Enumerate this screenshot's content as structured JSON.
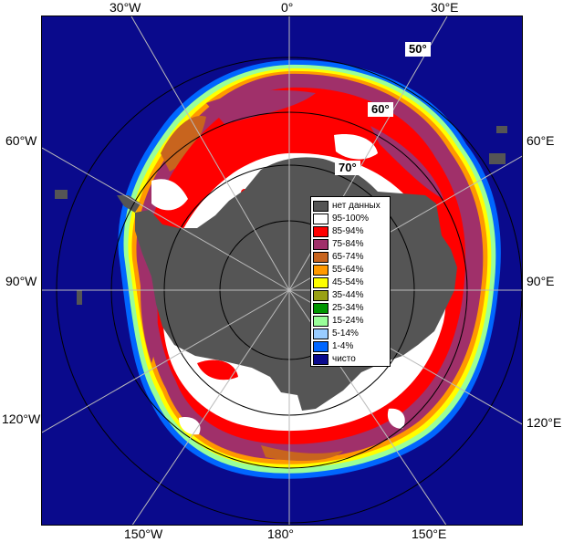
{
  "lon_labels": {
    "top": [
      "30°W",
      "0°",
      "30°E"
    ],
    "left": [
      "60°W",
      "90°W",
      "120°W"
    ],
    "right": [
      "60°E",
      "90°E",
      "120°E"
    ],
    "bottom": [
      "150°W",
      "180°",
      "150°E"
    ]
  },
  "lat_labels": [
    "50°",
    "60°",
    "70°"
  ],
  "legend": [
    {
      "label": "нет данных",
      "color": "#555555"
    },
    {
      "label": "95-100%",
      "color": "#ffffff"
    },
    {
      "label": "85-94%",
      "color": "#ff0000"
    },
    {
      "label": "75-84%",
      "color": "#a0306a"
    },
    {
      "label": "65-74%",
      "color": "#c8641e"
    },
    {
      "label": "55-64%",
      "color": "#ff9900"
    },
    {
      "label": "45-54%",
      "color": "#ffff00"
    },
    {
      "label": "35-44%",
      "color": "#99a014"
    },
    {
      "label": "25-34%",
      "color": "#009600"
    },
    {
      "label": "15-24%",
      "color": "#99ff99"
    },
    {
      "label": "5-14%",
      "color": "#99ccff"
    },
    {
      "label": "1-4%",
      "color": "#0066ff"
    },
    {
      "label": "чисто",
      "color": "#0a0a8c"
    }
  ],
  "colors": {
    "water": "#0a0a8c",
    "land": "#555555",
    "ice_full": "#ffffff",
    "ice_high": "#ff0000",
    "ice_mid": "#a0306a"
  }
}
